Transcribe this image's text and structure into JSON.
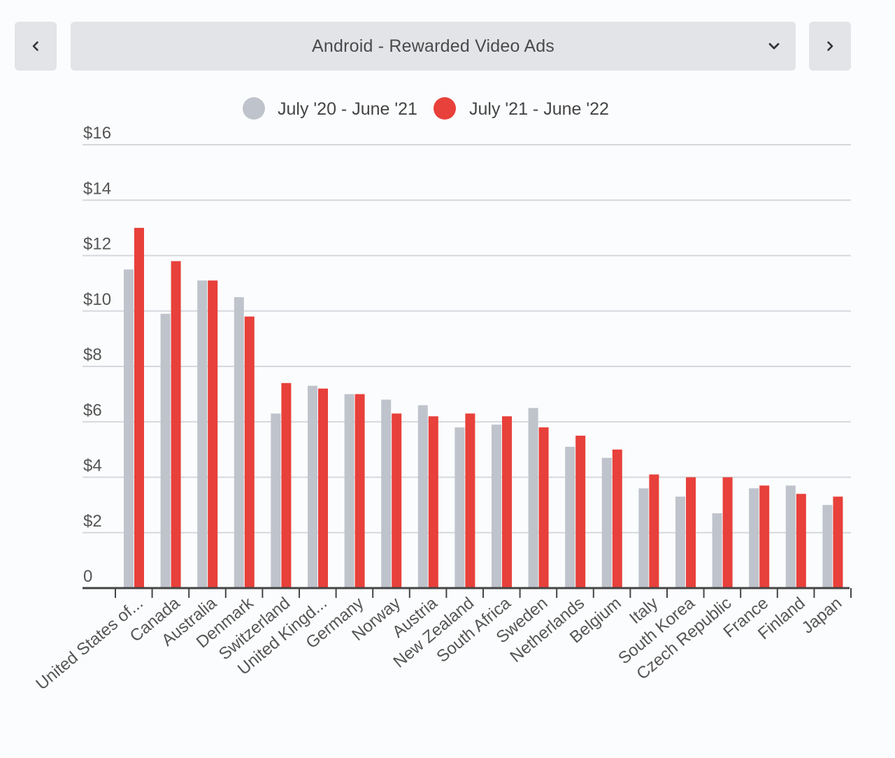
{
  "selector": {
    "label": "Android - Rewarded Video Ads",
    "prev_icon": "chevron-left-icon",
    "next_icon": "chevron-right-icon",
    "dropdown_icon": "chevron-down-icon"
  },
  "colors": {
    "series_a": "#bfc3cb",
    "series_b": "#e8403a",
    "grid": "#d5d8dd",
    "axis": "#444444"
  },
  "chart_data": {
    "type": "bar",
    "title": "",
    "xlabel": "",
    "ylabel": "",
    "ylim": [
      0,
      16
    ],
    "y_ticks": [
      {
        "value": 0,
        "label": "0"
      },
      {
        "value": 2,
        "label": "$2"
      },
      {
        "value": 4,
        "label": "$4"
      },
      {
        "value": 6,
        "label": "$6"
      },
      {
        "value": 8,
        "label": "$8"
      },
      {
        "value": 10,
        "label": "$10"
      },
      {
        "value": 12,
        "label": "$12"
      },
      {
        "value": 14,
        "label": "$14"
      },
      {
        "value": 16,
        "label": "$16"
      }
    ],
    "grid": true,
    "legend_position": "top-center",
    "categories": [
      "United States of...",
      "Canada",
      "Australia",
      "Denmark",
      "Switzerland",
      "United Kingd...",
      "Germany",
      "Norway",
      "Austria",
      "New Zealand",
      "South Africa",
      "Sweden",
      "Netherlands",
      "Belgium",
      "Italy",
      "South Korea",
      "Czech Republic",
      "France",
      "Finland",
      "Japan"
    ],
    "series": [
      {
        "name": "July '20 - June '21",
        "values": [
          11.5,
          9.9,
          11.1,
          10.5,
          6.3,
          7.3,
          7.0,
          6.8,
          6.6,
          5.8,
          5.9,
          6.5,
          5.1,
          4.7,
          3.6,
          3.3,
          2.7,
          3.6,
          3.7,
          3.0
        ]
      },
      {
        "name": "July '21 - June '22",
        "values": [
          13.0,
          11.8,
          11.1,
          9.8,
          7.4,
          7.2,
          7.0,
          6.3,
          6.2,
          6.3,
          6.2,
          5.8,
          5.5,
          5.0,
          4.1,
          4.0,
          4.0,
          3.7,
          3.4,
          3.3
        ]
      }
    ]
  }
}
